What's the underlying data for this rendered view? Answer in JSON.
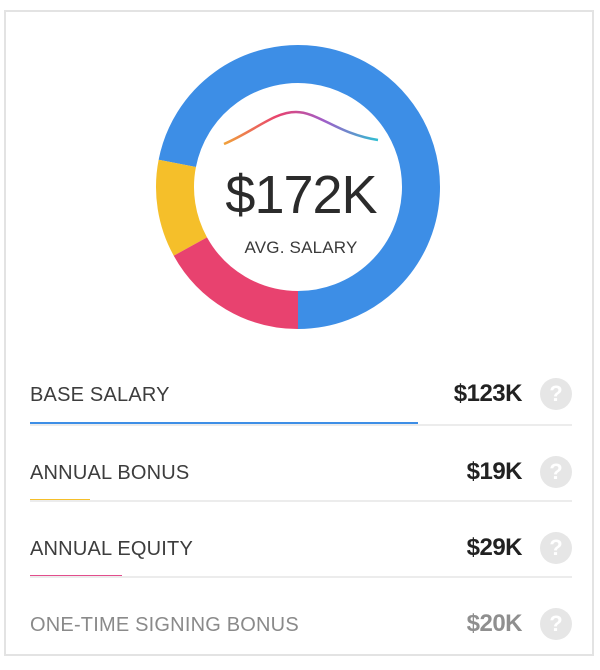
{
  "summary": {
    "total_value": "$172K",
    "total_label": "AVG. SALARY"
  },
  "chart_data": {
    "type": "pie",
    "categories": [
      "Base Salary",
      "Annual Bonus",
      "Annual Equity"
    ],
    "values": [
      123,
      19,
      29
    ],
    "colors": [
      "#3d8ee6",
      "#f5bf2a",
      "#e8426f"
    ],
    "hole": true
  },
  "components": [
    {
      "label": "BASE SALARY",
      "value": "$123K",
      "color": "#3d8ee6",
      "fraction": 0.715
    },
    {
      "label": "ANNUAL BONUS",
      "value": "$19K",
      "color": "#f5bf2a",
      "fraction": 0.11
    },
    {
      "label": "ANNUAL EQUITY",
      "value": "$29K",
      "color": "#e24d8c",
      "fraction": 0.169
    },
    {
      "label": "ONE-TIME SIGNING BONUS",
      "value": "$20K",
      "color": "",
      "fraction": 0
    }
  ],
  "help_icon_glyph": "?",
  "colors": {
    "wave_gradient": [
      "#f0a23a",
      "#e8426f",
      "#a05ec8",
      "#2fbfd1"
    ]
  }
}
